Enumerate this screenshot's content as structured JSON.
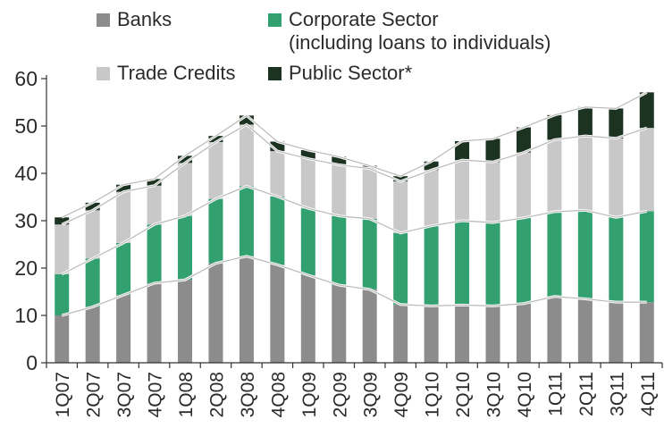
{
  "chart_data": {
    "type": "bar",
    "stacked": true,
    "categories": [
      "1Q07",
      "2Q07",
      "3Q07",
      "4Q07",
      "1Q08",
      "2Q08",
      "3Q08",
      "4Q08",
      "1Q09",
      "2Q09",
      "3Q09",
      "4Q09",
      "1Q10",
      "2Q10",
      "3Q10",
      "4Q10",
      "1Q11",
      "2Q11",
      "3Q11",
      "4Q11"
    ],
    "ylim": [
      0,
      60
    ],
    "yticks": [
      0,
      10,
      20,
      30,
      40,
      50,
      60
    ],
    "grid": false,
    "legend": "top",
    "series": [
      {
        "name": "Banks",
        "color": "#8c8c8c",
        "values": [
          10,
          11.8,
          14.3,
          16.8,
          17.5,
          21,
          22.5,
          20.7,
          18.5,
          16.4,
          15.5,
          12.3,
          12,
          12.2,
          12,
          12.5,
          14,
          13.5,
          12.8,
          12.8
        ]
      },
      {
        "name": "Corporate Sector\n(including loans to individuals)",
        "color": "#33a070",
        "values": [
          8.7,
          10.2,
          11,
          12.4,
          13.5,
          13.6,
          14.8,
          14.4,
          14.1,
          14.6,
          14.9,
          15.1,
          16.9,
          17.8,
          17.6,
          18.1,
          17.9,
          18.7,
          17.9,
          19.2
        ]
      },
      {
        "name": "Trade Credits",
        "color": "#c8c8c8",
        "values": [
          10.5,
          10.2,
          10.8,
          8.2,
          11.2,
          12,
          13,
          9.6,
          10.5,
          10.8,
          10.6,
          10.9,
          11.8,
          12.8,
          12.8,
          13.8,
          15.2,
          15.7,
          16.7,
          17.6
        ]
      },
      {
        "name": "Public Sector*",
        "color": "#1c3322",
        "values": [
          1.5,
          1.6,
          1.5,
          1.4,
          1.5,
          1.3,
          1.9,
          2,
          1.8,
          1.7,
          0.6,
          1.1,
          1.8,
          4,
          4.9,
          5.3,
          5.2,
          6.1,
          6.3,
          7.5
        ]
      }
    ]
  }
}
